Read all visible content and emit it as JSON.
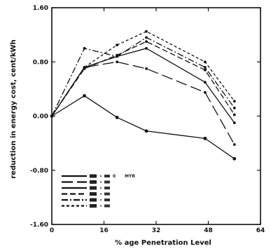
{
  "chart_data": {
    "type": "line",
    "title": "",
    "xlabel": "% age Penetration Level",
    "ylabel": "reduction in energy cost, cent/kWh",
    "xlim": [
      0,
      64
    ],
    "ylim": [
      -1.6,
      1.6
    ],
    "xticks": [
      "0",
      "16",
      "32",
      "48",
      "64"
    ],
    "yticks": [
      "1.60",
      "0.80",
      "0.00",
      "-0.80",
      "-1.60"
    ],
    "xtick_values": [
      0,
      16,
      32,
      48,
      64
    ],
    "ytick_values": [
      1.6,
      0.8,
      0,
      -0.8,
      -1.6
    ],
    "grid": false,
    "legend_position": "bottom-left",
    "legend_unit": "MYR",
    "legend_labels": [
      "0",
      "",
      "",
      "",
      "",
      ""
    ],
    "series": [
      {
        "style": "solid-dots",
        "x": [
          0,
          10,
          20,
          29,
          47,
          56
        ],
        "y": [
          0,
          0.3,
          -0.02,
          -0.22,
          -0.33,
          -0.63
        ]
      },
      {
        "style": "long-dash",
        "x": [
          0,
          10,
          20,
          29,
          47,
          56
        ],
        "y": [
          0,
          0.72,
          0.8,
          0.7,
          0.35,
          -0.42
        ]
      },
      {
        "style": "solid",
        "x": [
          0,
          10,
          20,
          29,
          47,
          56
        ],
        "y": [
          0,
          0.72,
          0.88,
          1.0,
          0.5,
          -0.1
        ]
      },
      {
        "style": "dash",
        "x": [
          0,
          10,
          20,
          29,
          47,
          56
        ],
        "y": [
          0,
          0.7,
          0.9,
          1.1,
          0.68,
          0.02
        ]
      },
      {
        "style": "dash-dot",
        "x": [
          0,
          10,
          20,
          29,
          47,
          56
        ],
        "y": [
          0,
          1.0,
          0.88,
          1.16,
          0.72,
          0.12
        ]
      },
      {
        "style": "short-dash",
        "x": [
          0,
          10,
          20,
          29,
          47,
          56
        ],
        "y": [
          0,
          0.72,
          1.05,
          1.25,
          0.8,
          0.22
        ]
      }
    ]
  }
}
